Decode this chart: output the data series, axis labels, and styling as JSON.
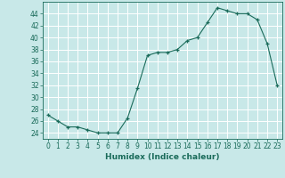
{
  "x": [
    0,
    1,
    2,
    3,
    4,
    5,
    6,
    7,
    8,
    9,
    10,
    11,
    12,
    13,
    14,
    15,
    16,
    17,
    18,
    19,
    20,
    21,
    22,
    23
  ],
  "y": [
    27,
    26,
    25,
    25,
    24.5,
    24,
    24,
    24,
    26.5,
    31.5,
    37,
    37.5,
    37.5,
    38,
    39.5,
    40,
    42.5,
    45,
    44.5,
    44,
    44,
    43,
    39,
    32
  ],
  "xlabel": "Humidex (Indice chaleur)",
  "xlim": [
    -0.5,
    23.5
  ],
  "ylim": [
    23,
    46
  ],
  "yticks": [
    24,
    26,
    28,
    30,
    32,
    34,
    36,
    38,
    40,
    42,
    44
  ],
  "xticks": [
    0,
    1,
    2,
    3,
    4,
    5,
    6,
    7,
    8,
    9,
    10,
    11,
    12,
    13,
    14,
    15,
    16,
    17,
    18,
    19,
    20,
    21,
    22,
    23
  ],
  "line_color": "#1a6b5a",
  "bg_color": "#c8e8e8",
  "grid_color": "#b0d8d8",
  "label_fontsize": 6.5,
  "tick_fontsize": 5.5
}
